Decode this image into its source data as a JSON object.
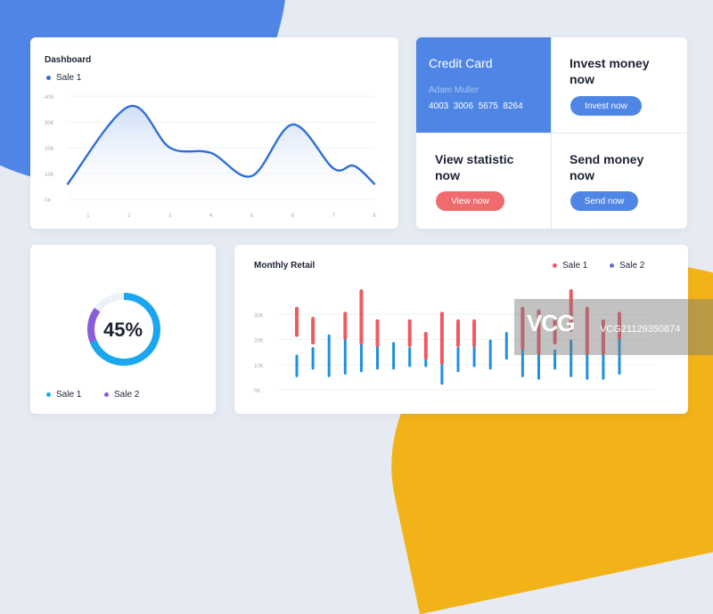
{
  "colors": {
    "primary_blue": "#4f86e6",
    "accent_red": "#ef6b6e",
    "line_blue": "#2f6fd8",
    "ring_blue": "#1aa7f0",
    "ring_purple": "#8a5cd8",
    "bar_red": "#ee5a5f",
    "bar_blue": "#1e90e0",
    "background": "#e6ebf3",
    "yellow_accent": "#f2b318"
  },
  "dashboard": {
    "title": "Dashboard",
    "legend_label": "Sale 1"
  },
  "credit_card": {
    "title": "Credit Card",
    "holder": "Adam Muller",
    "number": "4003  3006  5675  8264"
  },
  "invest": {
    "heading": "Invest money now",
    "button": "Invest now"
  },
  "statistic": {
    "heading": "View statistic now",
    "button": "View now"
  },
  "send": {
    "heading": "Send money now",
    "button": "Send now"
  },
  "progress": {
    "percent_label": "45%",
    "value": 0.45,
    "legend": [
      "Sale 1",
      "Sale 2"
    ]
  },
  "monthly": {
    "title": "Monthly Retail",
    "legend": [
      "Sale 1",
      "Sale 2"
    ]
  },
  "watermark": "VCG21129350874",
  "chart_data": [
    {
      "type": "area",
      "title": "Dashboard",
      "series_name": "Sale 1",
      "x": [
        1,
        2,
        3,
        4,
        5,
        6,
        7,
        8
      ],
      "y_ticks": [
        "0K",
        "10K",
        "20K",
        "30K",
        "40K"
      ],
      "ylim": [
        0,
        40
      ],
      "points": [
        [
          0.5,
          6
        ],
        [
          2,
          36
        ],
        [
          3,
          20
        ],
        [
          4,
          18
        ],
        [
          5,
          9
        ],
        [
          6,
          29
        ],
        [
          7,
          12
        ],
        [
          7.5,
          13
        ],
        [
          8,
          6
        ]
      ],
      "grid": true,
      "legend_position": "top-left"
    },
    {
      "type": "bar",
      "title": "Monthly Retail",
      "y_ticks": [
        "0K",
        "10K",
        "20K",
        "30K"
      ],
      "ylim": [
        0,
        40
      ],
      "series": [
        {
          "name": "Sale 1",
          "ranges": [
            [
              21,
              33
            ],
            [
              18,
              29
            ],
            null,
            [
              20,
              31
            ],
            [
              18,
              40
            ],
            [
              17,
              28
            ],
            null,
            [
              17,
              28
            ],
            [
              12,
              23
            ],
            [
              10,
              31
            ],
            [
              17,
              28
            ],
            [
              17,
              28
            ],
            null,
            null,
            [
              16,
              33
            ],
            [
              14,
              32
            ],
            [
              18,
              29
            ],
            [
              23,
              40
            ],
            [
              14,
              33
            ],
            [
              14,
              28
            ],
            [
              20,
              31
            ]
          ]
        },
        {
          "name": "Sale 2",
          "ranges": [
            [
              5,
              14
            ],
            [
              8,
              17
            ],
            [
              5,
              22
            ],
            [
              6,
              21
            ],
            [
              7,
              20
            ],
            [
              8,
              19
            ],
            [
              8,
              19
            ],
            [
              9,
              17
            ],
            [
              9,
              17
            ],
            [
              2,
              11
            ],
            [
              7,
              17
            ],
            [
              9,
              18
            ],
            [
              8,
              20
            ],
            [
              12,
              23
            ],
            [
              5,
              18
            ],
            [
              4,
              15
            ],
            [
              8,
              16
            ],
            [
              5,
              20
            ],
            [
              4,
              19
            ],
            [
              4,
              24
            ],
            [
              6,
              21
            ]
          ]
        }
      ]
    }
  ]
}
